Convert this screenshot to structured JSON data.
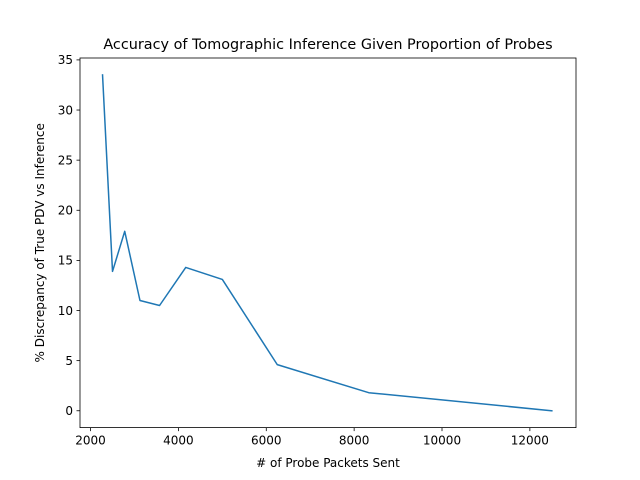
{
  "chart_data": {
    "type": "line",
    "title": "Accuracy of Tomographic Inference Given Proportion of Probes",
    "xlabel": "# of Probe Packets Sent",
    "ylabel": "% Discrepancy of True PDV vs Inference",
    "xlim": [
      1760,
      13050
    ],
    "ylim": [
      -1.68,
      35.19
    ],
    "xticks": [
      2000,
      4000,
      6000,
      8000,
      10000,
      12000
    ],
    "yticks": [
      0,
      5,
      10,
      15,
      20,
      25,
      30,
      35
    ],
    "grid": false,
    "series": [
      {
        "color": "#1f77b4",
        "x": [
          2273,
          2500,
          2778,
          3125,
          3571,
          4167,
          5000,
          6250,
          8333,
          12500
        ],
        "y": [
          33.5,
          13.9,
          17.9,
          11.0,
          10.5,
          14.3,
          13.1,
          4.6,
          1.8,
          0.0
        ]
      }
    ]
  }
}
